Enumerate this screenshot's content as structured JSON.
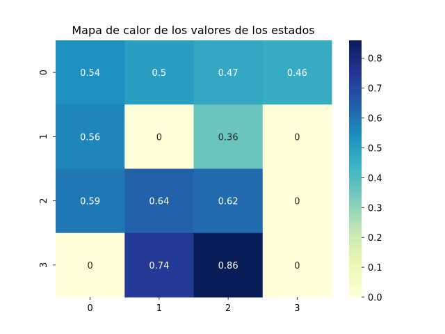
{
  "chart_data": {
    "type": "heatmap",
    "title": "Mapa de calor de los valores de los estados",
    "xlabel": "",
    "ylabel": "",
    "x_categories": [
      "0",
      "1",
      "2",
      "3"
    ],
    "y_categories": [
      "0",
      "1",
      "2",
      "3"
    ],
    "values": [
      [
        0.54,
        0.5,
        0.47,
        0.46
      ],
      [
        0.56,
        0,
        0.36,
        0
      ],
      [
        0.59,
        0.64,
        0.62,
        0
      ],
      [
        0,
        0.74,
        0.86,
        0
      ]
    ],
    "cell_labels": [
      [
        "0.54",
        "0.5",
        "0.47",
        "0.46"
      ],
      [
        "0.56",
        "0",
        "0.36",
        "0"
      ],
      [
        "0.59",
        "0.64",
        "0.62",
        "0"
      ],
      [
        "0",
        "0.74",
        "0.86",
        "0"
      ]
    ],
    "colorscale": "YlGnBu",
    "colorbar": {
      "range": [
        0,
        0.86
      ],
      "ticks": [
        "0.0",
        "0.1",
        "0.2",
        "0.3",
        "0.4",
        "0.5",
        "0.6",
        "0.7",
        "0.8"
      ]
    }
  }
}
